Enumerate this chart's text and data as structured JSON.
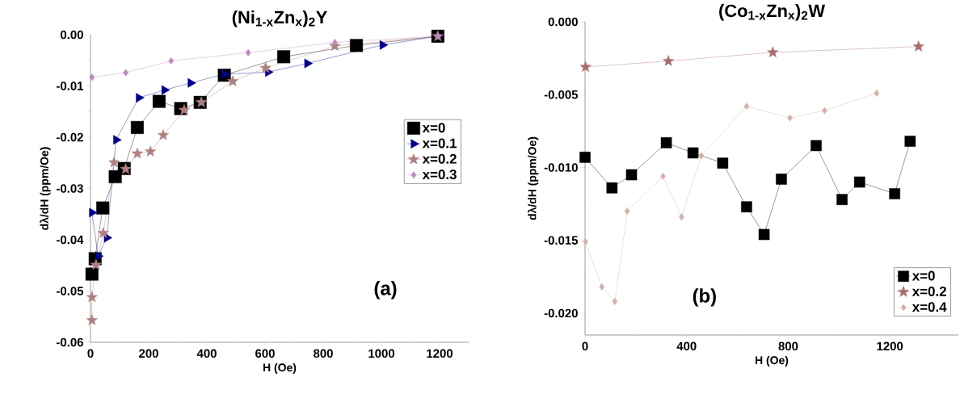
{
  "chart_data": [
    {
      "type": "line",
      "title": "(Ni$_{1-x}$Zn$_{x}$)$_{2}$Y",
      "xlabel": "H (Oe)",
      "ylabel": "dλ/dH (ppm/Oe)",
      "annotations": [
        "(a)"
      ],
      "xlim": [
        0,
        1300
      ],
      "xticks": [
        0,
        200,
        400,
        600,
        800,
        1000,
        1200
      ],
      "ylim": [
        -0.06,
        0.0
      ],
      "yticks": [
        {
          "value": -0.06,
          "label": "-0.06"
        },
        {
          "value": -0.05,
          "label": "-0.05"
        },
        {
          "value": -0.04,
          "label": "-0.04"
        },
        {
          "value": -0.03,
          "label": "-0.03"
        },
        {
          "value": -0.02,
          "label": "-0.02"
        },
        {
          "value": -0.01,
          "label": "-0.01"
        },
        {
          "value": 0.0,
          "label": "0.00"
        }
      ],
      "legend": "right",
      "line_style": "solid",
      "series": [
        {
          "name": "x=0",
          "color": "#000000",
          "marker": "square",
          "x": [
            5,
            16,
            42,
            85,
            116,
            161,
            236,
            310,
            377,
            460,
            664,
            914,
            1194
          ],
          "values": [
            -0.0467,
            -0.0437,
            -0.0338,
            -0.0277,
            -0.0261,
            -0.0181,
            -0.013,
            -0.0144,
            -0.0132,
            -0.0079,
            -0.0043,
            -0.0021,
            -0.0003
          ]
        },
        {
          "name": "x=0.1",
          "color": "#00008b",
          "marker": "triangle",
          "x": [
            5,
            26,
            56,
            88,
            166,
            254,
            344,
            460,
            610,
            745,
            1004,
            1194
          ],
          "values": [
            -0.0347,
            -0.0432,
            -0.0396,
            -0.0205,
            -0.0123,
            -0.0108,
            -0.0094,
            -0.0077,
            -0.0073,
            -0.0056,
            -0.002,
            -0.0003
          ]
        },
        {
          "name": "x=0.2",
          "color": "#b08080",
          "marker": "star",
          "x": [
            5,
            5,
            19,
            44,
            81,
            121,
            161,
            206,
            250,
            322,
            381,
            489,
            602,
            840,
            1194
          ],
          "values": [
            -0.0557,
            -0.0512,
            -0.0449,
            -0.0387,
            -0.0249,
            -0.0262,
            -0.0232,
            -0.0228,
            -0.0196,
            -0.0147,
            -0.0132,
            -0.0091,
            -0.0065,
            -0.0022,
            -0.0003
          ]
        },
        {
          "name": "x=0.3",
          "color": "#c088c0",
          "marker": "diamond",
          "x": [
            5,
            121,
            277,
            542,
            840,
            1194
          ],
          "values": [
            -0.0083,
            -0.0074,
            -0.0051,
            -0.0035,
            -0.0015,
            -0.0003
          ]
        }
      ]
    },
    {
      "type": "line",
      "title": "(Co$_{1-x}$Zn$_{x}$)$_{2}$W",
      "xlabel": "H (Oe)",
      "ylabel": "dλ/dH (ppm/Oe)",
      "annotations": [
        "(b)"
      ],
      "xlim": [
        0,
        1470
      ],
      "xticks": [
        0,
        400,
        800,
        1200
      ],
      "ylim": [
        -0.0215,
        0.0
      ],
      "yticks": [
        {
          "value": -0.02,
          "label": "-0.020"
        },
        {
          "value": -0.015,
          "label": "-0.015"
        },
        {
          "value": -0.01,
          "label": "-0.010"
        },
        {
          "value": -0.005,
          "label": "-0.005"
        },
        {
          "value": 0.0,
          "label": "0.000"
        }
      ],
      "legend": "bottom right",
      "line_style": "solid",
      "series": [
        {
          "name": "x=0",
          "color": "#000000",
          "marker": "square",
          "x": [
            0,
            106,
            183,
            320,
            425,
            542,
            636,
            705,
            773,
            910,
            1012,
            1081,
            1219,
            1280
          ],
          "values": [
            -0.0093,
            -0.0114,
            -0.0105,
            -0.0083,
            -0.009,
            -0.0097,
            -0.0127,
            -0.0146,
            -0.0108,
            -0.0085,
            -0.0122,
            -0.011,
            -0.0118,
            -0.0082
          ]
        },
        {
          "name": "x=0.2",
          "color": "#a86e6e",
          "marker": "star",
          "x": [
            2,
            328,
            739,
            1313
          ],
          "values": [
            -0.0031,
            -0.0027,
            -0.0021,
            -0.0017
          ]
        },
        {
          "name": "x=0.4",
          "color": "#d4b0a8",
          "marker": "diamond",
          "x": [
            2,
            66,
            117,
            166,
            307,
            380,
            458,
            636,
            807,
            943,
            1148
          ],
          "values": [
            -0.0151,
            -0.0182,
            -0.0192,
            -0.013,
            -0.0106,
            -0.0134,
            -0.0092,
            -0.0058,
            -0.0066,
            -0.0061,
            -0.0049
          ]
        }
      ]
    }
  ]
}
